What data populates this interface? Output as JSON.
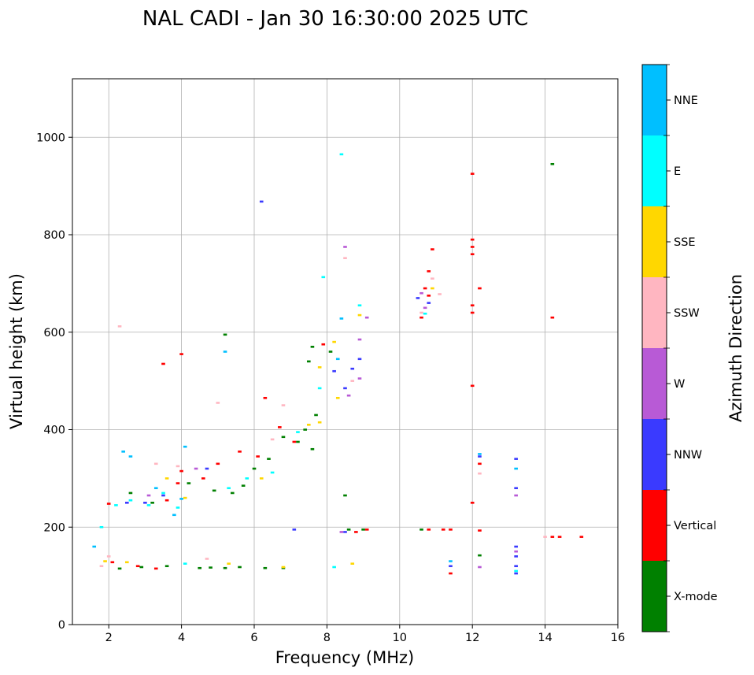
{
  "chart_data": {
    "type": "scatter",
    "title": "NAL CADI - Jan 30 16:30:00 2025 UTC",
    "xlabel": "Frequency (MHz)",
    "ylabel": "Virtual height (km)",
    "xlim": [
      1,
      16
    ],
    "ylim": [
      0,
      1120
    ],
    "xticks": [
      2,
      4,
      6,
      8,
      10,
      12,
      14,
      16
    ],
    "yticks": [
      0,
      200,
      400,
      600,
      800,
      1000
    ],
    "grid": true,
    "colorbar": {
      "title": "Azimuth Direction",
      "categories": [
        {
          "name": "X-mode",
          "color": "#008000"
        },
        {
          "name": "Vertical",
          "color": "#ff0000"
        },
        {
          "name": "NNW",
          "color": "#3a3aff"
        },
        {
          "name": "W",
          "color": "#b85ad6"
        },
        {
          "name": "SSW",
          "color": "#ffb6c1"
        },
        {
          "name": "SSE",
          "color": "#ffd700"
        },
        {
          "name": "E",
          "color": "#00ffff"
        },
        {
          "name": "NNE",
          "color": "#00bfff"
        }
      ]
    },
    "series": [
      {
        "name": "X-mode",
        "points": [
          [
            2.3,
            115
          ],
          [
            2.9,
            118
          ],
          [
            3.6,
            120
          ],
          [
            4.5,
            116
          ],
          [
            4.8,
            117
          ],
          [
            5.2,
            116
          ],
          [
            5.6,
            118
          ],
          [
            6.3,
            116
          ],
          [
            6.8,
            116
          ],
          [
            2.6,
            270
          ],
          [
            3.2,
            250
          ],
          [
            4.2,
            290
          ],
          [
            4.9,
            275
          ],
          [
            5.4,
            270
          ],
          [
            5.7,
            285
          ],
          [
            6.0,
            320
          ],
          [
            6.4,
            340
          ],
          [
            6.8,
            385
          ],
          [
            7.2,
            375
          ],
          [
            7.6,
            360
          ],
          [
            7.4,
            400
          ],
          [
            7.7,
            430
          ],
          [
            7.5,
            540
          ],
          [
            7.6,
            570
          ],
          [
            5.2,
            595
          ],
          [
            8.1,
            560
          ],
          [
            8.5,
            265
          ],
          [
            8.6,
            195
          ],
          [
            9.0,
            195
          ],
          [
            10.6,
            195
          ],
          [
            12.2,
            142
          ],
          [
            14.2,
            945
          ]
        ]
      },
      {
        "name": "Vertical",
        "points": [
          [
            2.0,
            248
          ],
          [
            2.1,
            128
          ],
          [
            2.8,
            120
          ],
          [
            3.3,
            115
          ],
          [
            3.6,
            255
          ],
          [
            3.9,
            290
          ],
          [
            4.0,
            315
          ],
          [
            4.0,
            555
          ],
          [
            3.5,
            535
          ],
          [
            4.6,
            300
          ],
          [
            5.0,
            330
          ],
          [
            5.6,
            355
          ],
          [
            6.1,
            345
          ],
          [
            6.3,
            465
          ],
          [
            6.7,
            405
          ],
          [
            7.1,
            375
          ],
          [
            7.9,
            575
          ],
          [
            8.8,
            190
          ],
          [
            9.1,
            195
          ],
          [
            10.6,
            630
          ],
          [
            10.7,
            690
          ],
          [
            10.8,
            675
          ],
          [
            10.8,
            725
          ],
          [
            10.9,
            770
          ],
          [
            10.8,
            195
          ],
          [
            11.2,
            195
          ],
          [
            11.4,
            195
          ],
          [
            11.4,
            105
          ],
          [
            12.0,
            925
          ],
          [
            12.0,
            790
          ],
          [
            12.0,
            775
          ],
          [
            12.0,
            760
          ],
          [
            12.0,
            655
          ],
          [
            12.0,
            640
          ],
          [
            12.0,
            490
          ],
          [
            12.0,
            250
          ],
          [
            12.2,
            690
          ],
          [
            12.2,
            330
          ],
          [
            12.2,
            193
          ],
          [
            14.2,
            630
          ],
          [
            14.2,
            180
          ],
          [
            14.4,
            180
          ],
          [
            15.0,
            180
          ]
        ]
      },
      {
        "name": "NNW",
        "points": [
          [
            2.5,
            250
          ],
          [
            3.0,
            250
          ],
          [
            3.5,
            265
          ],
          [
            4.7,
            320
          ],
          [
            6.2,
            868
          ],
          [
            7.1,
            195
          ],
          [
            8.2,
            520
          ],
          [
            8.5,
            485
          ],
          [
            8.7,
            525
          ],
          [
            8.9,
            545
          ],
          [
            8.5,
            190
          ],
          [
            10.5,
            670
          ],
          [
            10.8,
            660
          ],
          [
            11.4,
            120
          ],
          [
            12.2,
            345
          ],
          [
            13.2,
            340
          ],
          [
            13.2,
            280
          ],
          [
            13.2,
            160
          ],
          [
            13.2,
            140
          ],
          [
            13.2,
            120
          ],
          [
            13.2,
            105
          ]
        ]
      },
      {
        "name": "W",
        "points": [
          [
            3.1,
            265
          ],
          [
            4.4,
            320
          ],
          [
            8.5,
            775
          ],
          [
            8.6,
            470
          ],
          [
            8.9,
            505
          ],
          [
            8.9,
            585
          ],
          [
            9.1,
            630
          ],
          [
            8.4,
            190
          ],
          [
            10.6,
            680
          ],
          [
            10.7,
            650
          ],
          [
            13.2,
            265
          ],
          [
            13.2,
            150
          ],
          [
            12.2,
            118
          ]
        ]
      },
      {
        "name": "SSW",
        "points": [
          [
            1.8,
            120
          ],
          [
            2.0,
            140
          ],
          [
            2.3,
            612
          ],
          [
            3.3,
            330
          ],
          [
            3.9,
            325
          ],
          [
            4.7,
            135
          ],
          [
            5.0,
            455
          ],
          [
            6.5,
            380
          ],
          [
            6.8,
            450
          ],
          [
            8.5,
            752
          ],
          [
            8.7,
            500
          ],
          [
            10.6,
            640
          ],
          [
            11.1,
            678
          ],
          [
            10.9,
            710
          ],
          [
            12.2,
            310
          ],
          [
            14.0,
            180
          ]
        ]
      },
      {
        "name": "SSE",
        "points": [
          [
            1.9,
            130
          ],
          [
            2.5,
            128
          ],
          [
            3.6,
            300
          ],
          [
            4.1,
            260
          ],
          [
            5.3,
            125
          ],
          [
            6.2,
            300
          ],
          [
            6.8,
            118
          ],
          [
            7.5,
            410
          ],
          [
            7.8,
            415
          ],
          [
            7.8,
            528
          ],
          [
            8.2,
            580
          ],
          [
            8.3,
            465
          ],
          [
            8.7,
            125
          ],
          [
            8.9,
            635
          ],
          [
            10.9,
            690
          ]
        ]
      },
      {
        "name": "E",
        "points": [
          [
            1.8,
            200
          ],
          [
            2.2,
            245
          ],
          [
            2.6,
            255
          ],
          [
            3.1,
            245
          ],
          [
            3.5,
            270
          ],
          [
            3.9,
            240
          ],
          [
            4.1,
            125
          ],
          [
            5.3,
            280
          ],
          [
            5.8,
            300
          ],
          [
            6.5,
            312
          ],
          [
            7.2,
            395
          ],
          [
            7.8,
            485
          ],
          [
            7.9,
            713
          ],
          [
            8.2,
            118
          ],
          [
            8.4,
            965
          ],
          [
            8.9,
            655
          ],
          [
            10.7,
            638
          ],
          [
            13.2,
            110
          ]
        ]
      },
      {
        "name": "NNE",
        "points": [
          [
            1.6,
            160
          ],
          [
            2.4,
            355
          ],
          [
            2.6,
            345
          ],
          [
            3.3,
            280
          ],
          [
            3.8,
            225
          ],
          [
            4.1,
            365
          ],
          [
            4.0,
            258
          ],
          [
            5.2,
            560
          ],
          [
            8.3,
            545
          ],
          [
            8.4,
            628
          ],
          [
            12.2,
            350
          ],
          [
            11.4,
            130
          ],
          [
            13.2,
            320
          ]
        ]
      }
    ]
  }
}
